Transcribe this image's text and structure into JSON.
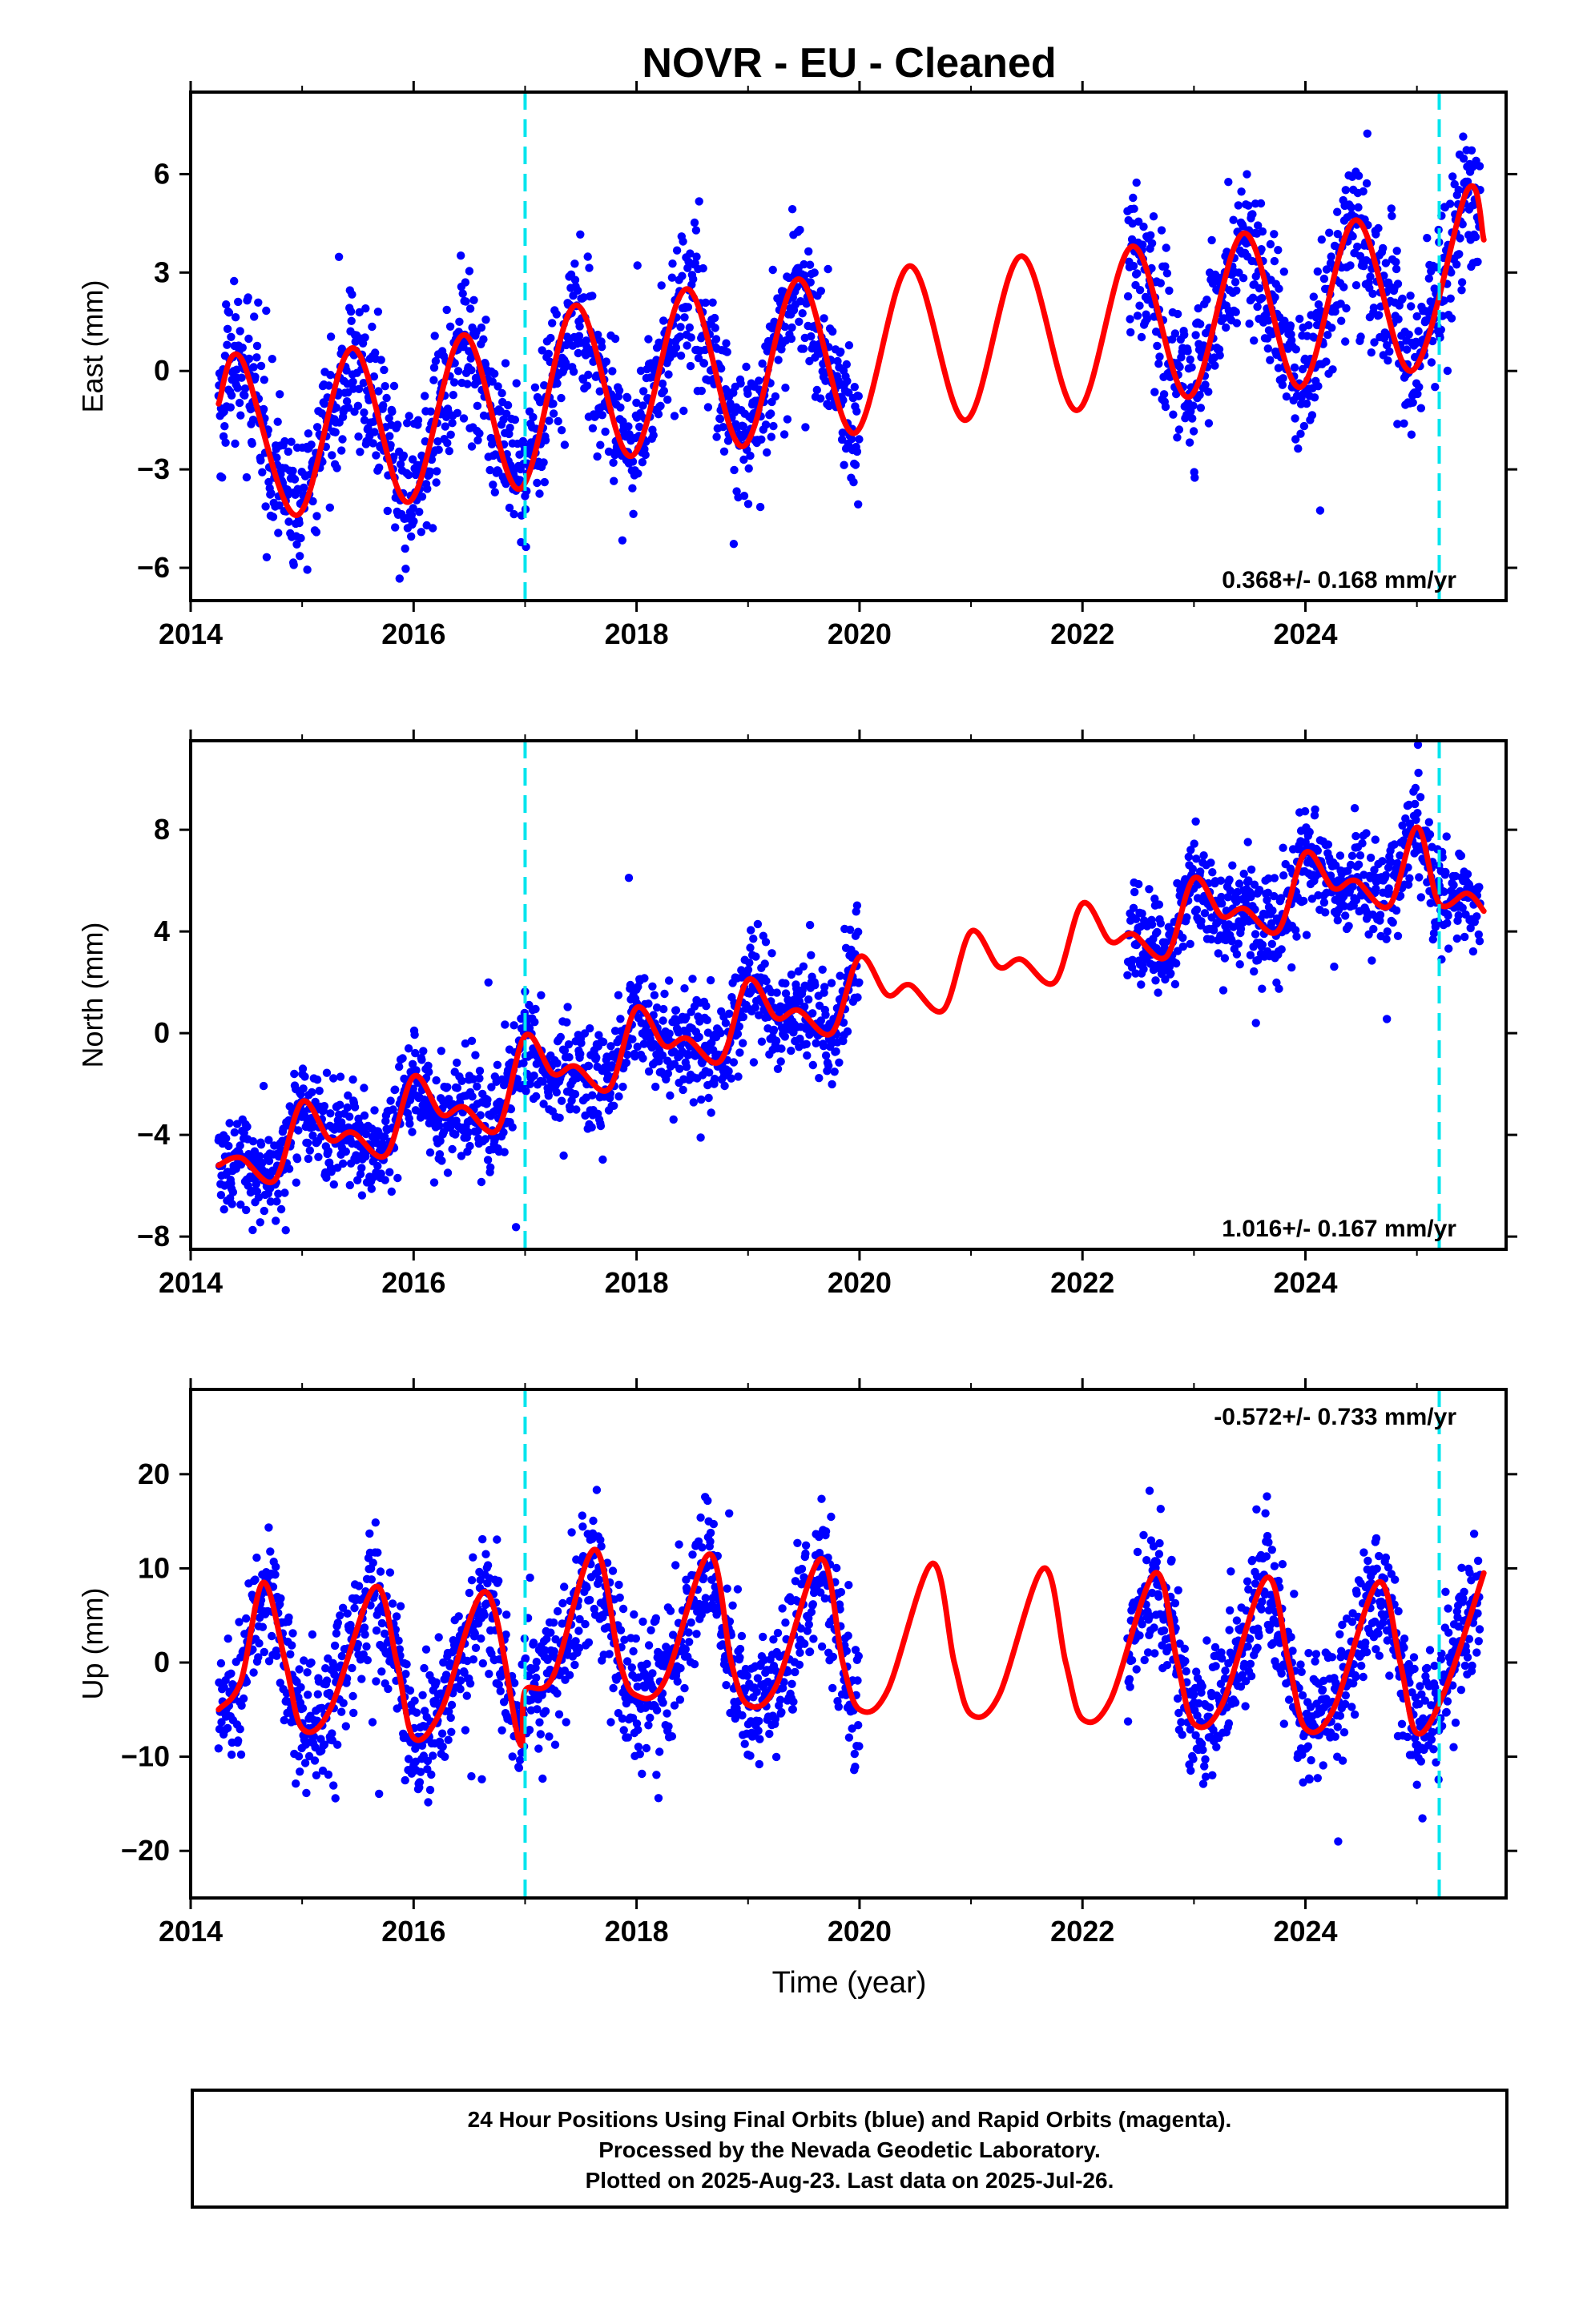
{
  "title": "NOVR  - EU - Cleaned",
  "xlabel": "Time (year)",
  "footer": {
    "line1": "24 Hour Positions Using Final Orbits (blue) and Rapid Orbits (magenta).",
    "line2": "Processed by the Nevada Geodetic Laboratory.",
    "line3": "Plotted on 2025-Aug-23. Last data on 2025-Jul-26."
  },
  "colors": {
    "points": "#0000ff",
    "model": "#ff0000",
    "events": "#00e5ee",
    "frame": "#000000"
  },
  "chart_data": [
    {
      "type": "scatter",
      "panel": "east",
      "ylabel": "East (mm)",
      "xlim": [
        2014.0,
        2025.8
      ],
      "ylim": [
        -7.0,
        8.5
      ],
      "xticks": [
        2014,
        2016,
        2018,
        2020,
        2022,
        2024
      ],
      "yticks": [
        -6,
        -3,
        0,
        3,
        6
      ],
      "rate_label": "0.368+/- 0.168 mm/yr",
      "rate_position": "bottom-right",
      "event_lines_x": [
        2017.0,
        2025.2
      ],
      "data_gap": [
        2020.0,
        2022.4
      ],
      "series": [
        {
          "role": "observations",
          "approx_points": [
            [
              2014.3,
              -1.2
            ],
            [
              2014.5,
              0.5
            ],
            [
              2014.8,
              -3.5
            ],
            [
              2015.0,
              -4.5
            ],
            [
              2015.3,
              -1.0
            ],
            [
              2015.5,
              1.0
            ],
            [
              2015.8,
              -2.5
            ],
            [
              2016.0,
              -4.0
            ],
            [
              2016.3,
              -1.0
            ],
            [
              2016.5,
              1.5
            ],
            [
              2016.8,
              -2.0
            ],
            [
              2017.0,
              -3.5
            ],
            [
              2017.3,
              0.5
            ],
            [
              2017.5,
              2.5
            ],
            [
              2017.8,
              -1.0
            ],
            [
              2018.0,
              -2.5
            ],
            [
              2018.3,
              0.5
            ],
            [
              2018.5,
              2.5
            ],
            [
              2018.8,
              -0.5
            ],
            [
              2019.0,
              -2.0
            ],
            [
              2019.3,
              1.0
            ],
            [
              2019.5,
              3.0
            ],
            [
              2019.8,
              -0.5
            ],
            [
              2020.0,
              -2.5
            ],
            [
              2022.4,
              4.0
            ],
            [
              2022.6,
              2.0
            ],
            [
              2022.9,
              -1.0
            ],
            [
              2023.2,
              2.0
            ],
            [
              2023.4,
              4.5
            ],
            [
              2023.7,
              2.0
            ],
            [
              2024.0,
              -0.5
            ],
            [
              2024.2,
              2.0
            ],
            [
              2024.4,
              5.0
            ],
            [
              2024.7,
              2.0
            ],
            [
              2025.0,
              0.0
            ],
            [
              2025.3,
              4.0
            ],
            [
              2025.5,
              5.5
            ]
          ]
        },
        {
          "role": "model",
          "approx_points": [
            [
              2014.25,
              -1.0
            ],
            [
              2014.45,
              0.4
            ],
            [
              2014.95,
              -4.4
            ],
            [
              2015.45,
              0.7
            ],
            [
              2015.95,
              -4.0
            ],
            [
              2016.45,
              1.1
            ],
            [
              2016.95,
              -3.6
            ],
            [
              2017.45,
              2.0
            ],
            [
              2017.95,
              -2.6
            ],
            [
              2018.45,
              2.5
            ],
            [
              2018.95,
              -2.3
            ],
            [
              2019.45,
              2.8
            ],
            [
              2019.95,
              -1.9
            ],
            [
              2020.45,
              3.2
            ],
            [
              2020.95,
              -1.5
            ],
            [
              2021.45,
              3.5
            ],
            [
              2021.95,
              -1.2
            ],
            [
              2022.45,
              3.8
            ],
            [
              2022.95,
              -0.8
            ],
            [
              2023.45,
              4.2
            ],
            [
              2023.95,
              -0.5
            ],
            [
              2024.45,
              4.6
            ],
            [
              2024.95,
              0.0
            ],
            [
              2025.45,
              5.5
            ],
            [
              2025.6,
              4.0
            ]
          ]
        }
      ]
    },
    {
      "type": "scatter",
      "panel": "north",
      "ylabel": "North (mm)",
      "xlim": [
        2014.0,
        2025.8
      ],
      "ylim": [
        -8.5,
        11.5
      ],
      "xticks": [
        2014,
        2016,
        2018,
        2020,
        2022,
        2024
      ],
      "yticks": [
        -8,
        -4,
        0,
        4,
        8
      ],
      "rate_label": "1.016+/- 0.167 mm/yr",
      "rate_position": "bottom-right",
      "event_lines_x": [
        2017.0,
        2025.2
      ],
      "data_gap": [
        2020.0,
        2022.4
      ],
      "series": [
        {
          "role": "observations",
          "approx_points": [
            [
              2014.3,
              -5.0
            ],
            [
              2014.6,
              -5.5
            ],
            [
              2014.8,
              -6.5
            ],
            [
              2015.0,
              -3.0
            ],
            [
              2015.3,
              -4.0
            ],
            [
              2015.6,
              -5.0
            ],
            [
              2015.8,
              -4.0
            ],
            [
              2016.0,
              -2.0
            ],
            [
              2016.3,
              -3.0
            ],
            [
              2016.6,
              -2.5
            ],
            [
              2016.8,
              -4.0
            ],
            [
              2017.0,
              0.0
            ],
            [
              2017.3,
              -1.5
            ],
            [
              2017.6,
              -1.0
            ],
            [
              2017.8,
              -2.0
            ],
            [
              2018.0,
              1.0
            ],
            [
              2018.3,
              -0.5
            ],
            [
              2018.6,
              0.0
            ],
            [
              2018.8,
              -1.0
            ],
            [
              2019.0,
              2.0
            ],
            [
              2019.3,
              0.5
            ],
            [
              2019.6,
              1.5
            ],
            [
              2019.9,
              2.0
            ],
            [
              2022.4,
              4.0
            ],
            [
              2022.7,
              3.0
            ],
            [
              2023.0,
              6.0
            ],
            [
              2023.3,
              5.0
            ],
            [
              2023.6,
              5.5
            ],
            [
              2024.0,
              7.0
            ],
            [
              2024.3,
              6.5
            ],
            [
              2024.6,
              6.0
            ],
            [
              2025.0,
              8.0
            ],
            [
              2025.3,
              5.5
            ],
            [
              2025.6,
              5.0
            ]
          ]
        },
        {
          "role": "model",
          "approx_points": [
            [
              2014.25,
              -5.2
            ],
            [
              2014.45,
              -4.9
            ],
            [
              2014.75,
              -5.8
            ],
            [
              2015.0,
              -2.7
            ],
            [
              2015.25,
              -4.2
            ],
            [
              2015.45,
              -3.9
            ],
            [
              2015.75,
              -4.8
            ],
            [
              2016.0,
              -1.7
            ],
            [
              2016.25,
              -3.2
            ],
            [
              2016.45,
              -2.9
            ],
            [
              2016.75,
              -3.8
            ],
            [
              2017.0,
              -0.1
            ],
            [
              2017.25,
              -1.6
            ],
            [
              2017.45,
              -1.3
            ],
            [
              2017.75,
              -2.2
            ],
            [
              2018.0,
              1.0
            ],
            [
              2018.25,
              -0.5
            ],
            [
              2018.45,
              -0.2
            ],
            [
              2018.75,
              -1.1
            ],
            [
              2019.0,
              2.1
            ],
            [
              2019.25,
              0.6
            ],
            [
              2019.45,
              0.9
            ],
            [
              2019.75,
              0.0
            ],
            [
              2020.0,
              3.0
            ],
            [
              2020.25,
              1.5
            ],
            [
              2020.45,
              1.9
            ],
            [
              2020.75,
              0.9
            ],
            [
              2021.0,
              4.0
            ],
            [
              2021.25,
              2.6
            ],
            [
              2021.45,
              2.9
            ],
            [
              2021.75,
              2.0
            ],
            [
              2022.0,
              5.1
            ],
            [
              2022.25,
              3.6
            ],
            [
              2022.45,
              3.9
            ],
            [
              2022.75,
              3.0
            ],
            [
              2023.0,
              6.1
            ],
            [
              2023.25,
              4.6
            ],
            [
              2023.45,
              4.9
            ],
            [
              2023.75,
              4.0
            ],
            [
              2024.0,
              7.1
            ],
            [
              2024.25,
              5.7
            ],
            [
              2024.45,
              6.0
            ],
            [
              2024.75,
              5.0
            ],
            [
              2025.0,
              8.1
            ],
            [
              2025.2,
              5.1
            ],
            [
              2025.45,
              5.5
            ],
            [
              2025.6,
              4.8
            ]
          ]
        }
      ]
    },
    {
      "type": "scatter",
      "panel": "up",
      "ylabel": "Up (mm)",
      "xlim": [
        2014.0,
        2025.8
      ],
      "ylim": [
        -25.0,
        29.0
      ],
      "xticks": [
        2014,
        2016,
        2018,
        2020,
        2022,
        2024
      ],
      "yticks": [
        -20,
        -10,
        0,
        10,
        20
      ],
      "rate_label": "-0.572+/- 0.733 mm/yr",
      "rate_position": "top-right",
      "event_lines_x": [
        2017.0,
        2025.2
      ],
      "data_gap": [
        2020.0,
        2022.4
      ],
      "series": [
        {
          "role": "observations",
          "approx_points": [
            [
              2014.3,
              -5.0
            ],
            [
              2014.5,
              2.0
            ],
            [
              2014.7,
              9.0
            ],
            [
              2014.9,
              0.0
            ],
            [
              2015.1,
              -7.0
            ],
            [
              2015.4,
              -5.0
            ],
            [
              2015.7,
              10.0
            ],
            [
              2015.9,
              0.0
            ],
            [
              2016.1,
              -8.0
            ],
            [
              2016.4,
              -3.0
            ],
            [
              2016.7,
              8.0
            ],
            [
              2016.9,
              0.0
            ],
            [
              2017.0,
              -8.0
            ],
            [
              2017.3,
              -2.0
            ],
            [
              2017.6,
              12.0
            ],
            [
              2017.9,
              2.0
            ],
            [
              2018.1,
              -4.0
            ],
            [
              2018.4,
              -1.0
            ],
            [
              2018.6,
              11.0
            ],
            [
              2018.9,
              2.0
            ],
            [
              2019.1,
              -4.0
            ],
            [
              2019.4,
              0.0
            ],
            [
              2019.6,
              11.0
            ],
            [
              2019.9,
              -3.0
            ],
            [
              2022.4,
              0.0
            ],
            [
              2022.6,
              10.0
            ],
            [
              2022.9,
              0.0
            ],
            [
              2023.1,
              -6.0
            ],
            [
              2023.4,
              -1.0
            ],
            [
              2023.6,
              10.0
            ],
            [
              2023.9,
              0.0
            ],
            [
              2024.1,
              -7.0
            ],
            [
              2024.4,
              -3.0
            ],
            [
              2024.6,
              9.0
            ],
            [
              2024.9,
              0.0
            ],
            [
              2025.1,
              -7.0
            ],
            [
              2025.4,
              0.0
            ],
            [
              2025.6,
              9.0
            ]
          ]
        },
        {
          "role": "model",
          "approx_points": [
            [
              2014.25,
              -5.0
            ],
            [
              2014.45,
              -2.0
            ],
            [
              2014.65,
              8.5
            ],
            [
              2014.85,
              0.0
            ],
            [
              2015.0,
              -7.0
            ],
            [
              2015.25,
              -5.0
            ],
            [
              2015.65,
              8.0
            ],
            [
              2015.85,
              0.0
            ],
            [
              2016.0,
              -8.0
            ],
            [
              2016.25,
              -5.0
            ],
            [
              2016.65,
              7.5
            ],
            [
              2016.95,
              -8.5
            ],
            [
              2017.0,
              -3.0
            ],
            [
              2017.25,
              -1.5
            ],
            [
              2017.62,
              12.0
            ],
            [
              2017.85,
              0.0
            ],
            [
              2018.0,
              -3.5
            ],
            [
              2018.25,
              -2.0
            ],
            [
              2018.65,
              11.5
            ],
            [
              2018.85,
              0.0
            ],
            [
              2019.0,
              -4.5
            ],
            [
              2019.25,
              -2.5
            ],
            [
              2019.65,
              11.0
            ],
            [
              2019.85,
              0.0
            ],
            [
              2020.0,
              -5.0
            ],
            [
              2020.25,
              -3.0
            ],
            [
              2020.65,
              10.5
            ],
            [
              2020.85,
              0.0
            ],
            [
              2021.0,
              -5.5
            ],
            [
              2021.25,
              -3.5
            ],
            [
              2021.65,
              10.0
            ],
            [
              2021.85,
              0.0
            ],
            [
              2022.0,
              -6.0
            ],
            [
              2022.25,
              -4.0
            ],
            [
              2022.65,
              9.5
            ],
            [
              2022.85,
              0.0
            ],
            [
              2023.0,
              -6.5
            ],
            [
              2023.25,
              -4.5
            ],
            [
              2023.65,
              9.0
            ],
            [
              2023.85,
              0.0
            ],
            [
              2024.0,
              -7.0
            ],
            [
              2024.25,
              -5.0
            ],
            [
              2024.65,
              8.5
            ],
            [
              2024.85,
              0.0
            ],
            [
              2025.0,
              -7.5
            ],
            [
              2025.25,
              -3.0
            ],
            [
              2025.6,
              9.5
            ]
          ]
        }
      ]
    }
  ]
}
